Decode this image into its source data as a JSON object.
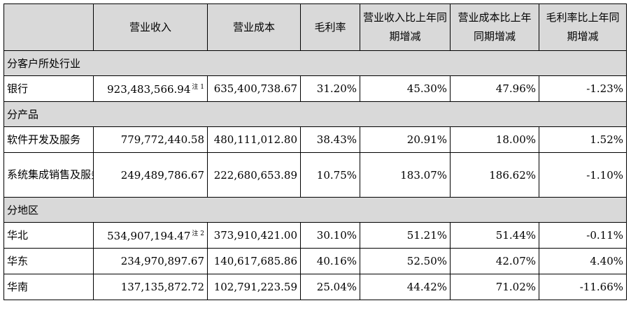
{
  "headers": [
    "",
    "营业收入",
    "营业成本",
    "毛利率",
    "营业收入比上年同期增减",
    "营业成本比上年同期增减",
    "毛利率比上年同期增减"
  ],
  "sections": [
    {
      "title": "分客户所处行业",
      "rows": [
        {
          "label": "银行",
          "revenue": "923,483,566.94",
          "note": "注 1",
          "cost": "635,400,738.67",
          "margin": "31.20%",
          "rev_change": "45.30%",
          "cost_change": "47.96%",
          "margin_change": "-1.23%"
        }
      ]
    },
    {
      "title": "分产品",
      "rows": [
        {
          "label": "软件开发及服务",
          "revenue": "779,772,440.58",
          "note": "",
          "cost": "480,111,012.80",
          "margin": "38.43%",
          "rev_change": "20.91%",
          "cost_change": "18.00%",
          "margin_change": "1.52%"
        },
        {
          "label": "系统集成销售及服务",
          "revenue": "249,489,786.67",
          "note": "",
          "cost": "222,680,653.89",
          "margin": "10.75%",
          "rev_change": "183.07%",
          "cost_change": "186.62%",
          "margin_change": "-1.10%"
        }
      ]
    },
    {
      "title": "分地区",
      "rows": [
        {
          "label": "华北",
          "revenue": "534,907,194.47",
          "note": "注 2",
          "cost": "373,910,421.00",
          "margin": "30.10%",
          "rev_change": "51.21%",
          "cost_change": "51.44%",
          "margin_change": "-0.11%"
        },
        {
          "label": "华东",
          "revenue": "234,970,897.67",
          "note": "",
          "cost": "140,617,685.86",
          "margin": "40.16%",
          "rev_change": "52.50%",
          "cost_change": "42.07%",
          "margin_change": "4.40%"
        },
        {
          "label": "华南",
          "revenue": "137,135,872.72",
          "note": "",
          "cost": "102,791,223.59",
          "margin": "25.04%",
          "rev_change": "44.42%",
          "cost_change": "71.02%",
          "margin_change": "-11.66%"
        }
      ]
    }
  ]
}
